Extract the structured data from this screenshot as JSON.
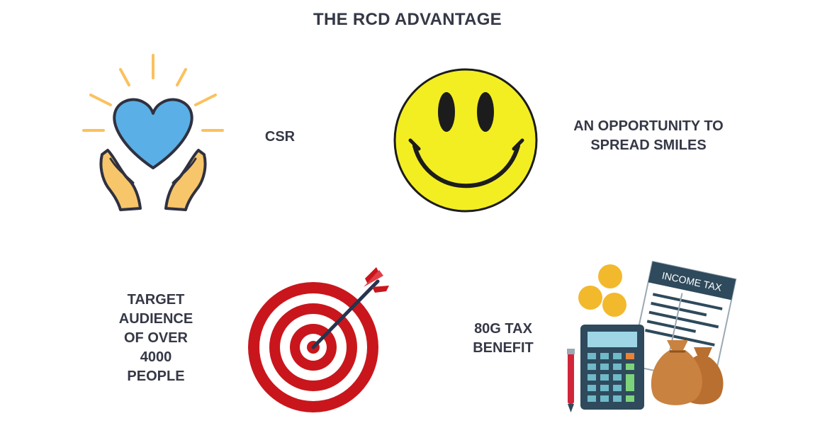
{
  "title": "THE RCD ADVANTAGE",
  "items": [
    {
      "label_lines": [
        "CSR"
      ],
      "icon": "heart-in-hands-icon"
    },
    {
      "label_lines": [
        "AN OPPORTUNITY TO",
        "SPREAD SMILES"
      ],
      "icon": "smiley-face-icon"
    },
    {
      "label_lines": [
        "TARGET",
        "AUDIENCE",
        "OF OVER",
        "4000",
        "PEOPLE"
      ],
      "icon": "dartboard-target-icon"
    },
    {
      "label_lines": [
        "80G TAX",
        "BENEFIT"
      ],
      "icon": "income-tax-icon"
    }
  ],
  "tax_form_heading": "INCOME TAX",
  "colors": {
    "text": "#353846",
    "heart": "#5AAFE6",
    "hands": "#F7C56A",
    "rays": "#FBC15E",
    "smiley": "#F3EE22",
    "target_red": "#C9161C",
    "coins": "#F2B92C",
    "calculator": "#2E4A5C",
    "money_bag": "#C98240"
  }
}
